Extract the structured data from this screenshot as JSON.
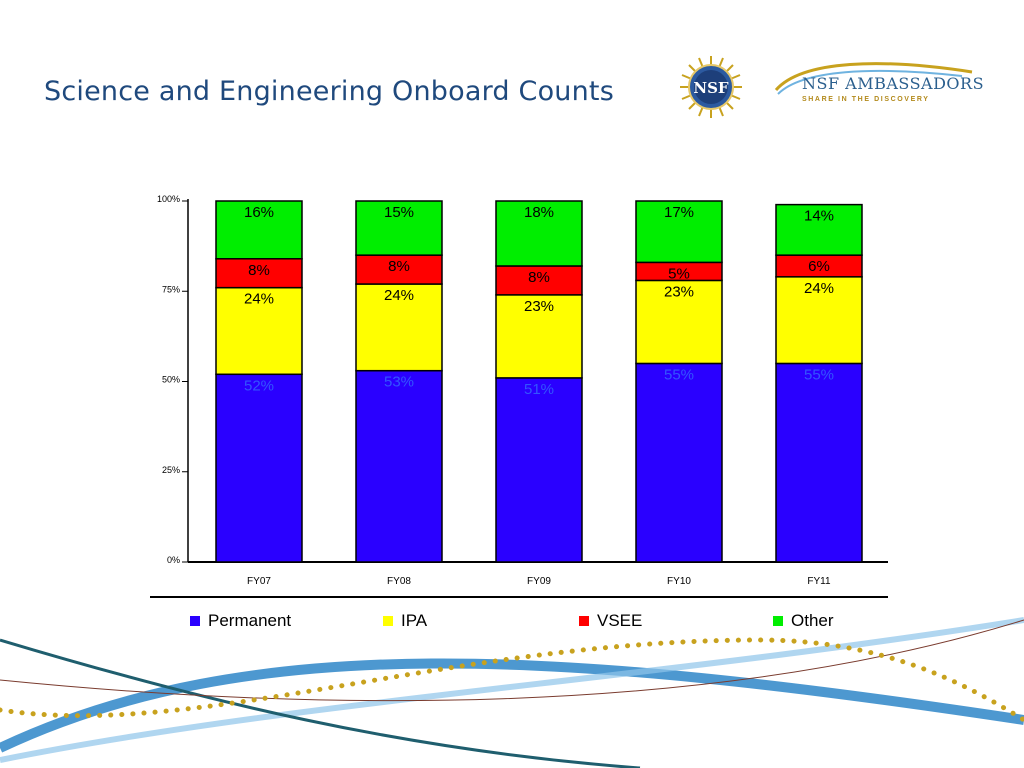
{
  "slide": {
    "title": "Science and Engineering Onboard Counts"
  },
  "logos": {
    "seal_text": "NSF",
    "ambassadors_name": "NSF AMBASSADORS",
    "ambassadors_tagline": "SHARE IN THE DISCOVERY"
  },
  "colors": {
    "title": "#1f497d",
    "permanent": "#2a00ff",
    "ipa": "#ffff00",
    "vsee": "#ff0000",
    "other": "#00ee00",
    "label_on_blue": "#3355ff",
    "gold": "#c8a21e",
    "light_blue": "#6fb3e0",
    "dark_teal": "#1f5e6e"
  },
  "chart_data": {
    "type": "bar",
    "stacked": true,
    "categories": [
      "FY07",
      "FY08",
      "FY09",
      "FY10",
      "FY11"
    ],
    "series": [
      {
        "name": "Permanent",
        "values": [
          52,
          53,
          51,
          55,
          55
        ]
      },
      {
        "name": "IPA",
        "values": [
          24,
          24,
          23,
          23,
          24
        ]
      },
      {
        "name": "VSEE",
        "values": [
          8,
          8,
          8,
          5,
          6
        ]
      },
      {
        "name": "Other",
        "values": [
          16,
          15,
          18,
          17,
          14
        ]
      }
    ],
    "ylim": [
      0,
      100
    ],
    "yticks": [
      "0%",
      "25%",
      "50%",
      "75%",
      "100%"
    ],
    "data_labels": [
      "52%",
      "53%",
      "51%",
      "55%",
      "55%",
      "24%",
      "24%",
      "23%",
      "23%",
      "24%",
      "8%",
      "8%",
      "8%",
      "5%",
      "6%",
      "16%",
      "15%",
      "18%",
      "17%",
      "14%"
    ],
    "grid": false,
    "legend_position": "bottom"
  },
  "legend": [
    {
      "label": "Permanent",
      "color": "#2a00ff"
    },
    {
      "label": "IPA",
      "color": "#ffff00"
    },
    {
      "label": "VSEE",
      "color": "#ff0000"
    },
    {
      "label": "Other",
      "color": "#00ee00"
    }
  ]
}
